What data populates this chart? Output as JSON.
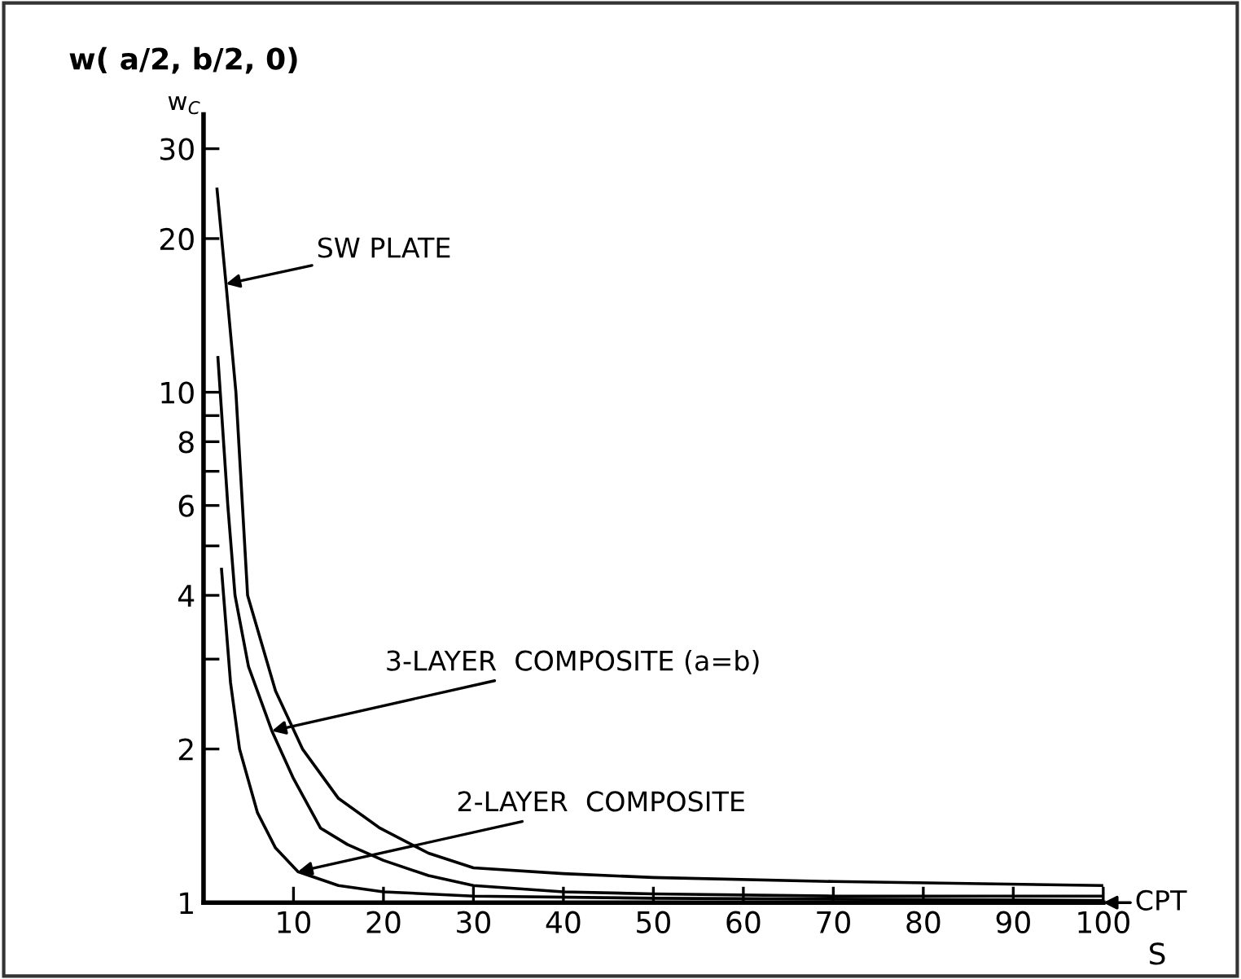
{
  "chart_data": {
    "type": "line",
    "title": "w( a/2, b/2, 0)",
    "xlabel": "S",
    "ylabel": "w$_{C}$",
    "log": "y",
    "xlim": [
      0,
      100
    ],
    "ylim": [
      1,
      35
    ],
    "xticks": [
      10,
      20,
      30,
      40,
      50,
      60,
      70,
      80,
      90,
      100
    ],
    "yticks": [
      1,
      2,
      {
        "value": 3,
        "label": null
      },
      4,
      {
        "value": 5,
        "label": null
      },
      6,
      {
        "value": 7,
        "label": null
      },
      8,
      {
        "value": 9,
        "label": null
      },
      10,
      20,
      30
    ],
    "grid": false,
    "marker": "none",
    "line_style": "solid",
    "series": [
      {
        "color": "#000000",
        "x": [
          1.5,
          2.5,
          3.6,
          4.9,
          8,
          11,
          15,
          19.6,
          25,
          30,
          40,
          50,
          70,
          100
        ],
        "values": [
          25,
          16.3,
          10,
          4,
          2.6,
          2,
          1.6,
          1.4,
          1.25,
          1.17,
          1.14,
          1.12,
          1.1,
          1.08
        ]
      },
      {
        "color": "#000000",
        "x": [
          1.6,
          2.7,
          3.5,
          5,
          7.6,
          10,
          13,
          16,
          20,
          25,
          30,
          40,
          50,
          70,
          100
        ],
        "values": [
          11.7,
          6,
          4,
          2.9,
          2.17,
          1.75,
          1.4,
          1.3,
          1.21,
          1.13,
          1.08,
          1.05,
          1.04,
          1.03,
          1.03
        ]
      },
      {
        "color": "#000000",
        "x": [
          2,
          3,
          4,
          6,
          8,
          10.5,
          15,
          20,
          30,
          50,
          100
        ],
        "values": [
          4.5,
          2.7,
          2,
          1.5,
          1.28,
          1.15,
          1.08,
          1.05,
          1.03,
          1.02,
          1.01
        ]
      }
    ],
    "annotations": [
      {
        "text": "SW PLATE",
        "x": 2.5,
        "y": 16.3
      },
      {
        "text": "3-LAYER  COMPOSITE (a=b)",
        "x": 7.6,
        "y": 2.17
      },
      {
        "text": "2-LAYER  COMPOSITE",
        "x": 10.5,
        "y": 1.15
      },
      {
        "text": "CPT",
        "x": 100,
        "y": 1
      }
    ]
  }
}
